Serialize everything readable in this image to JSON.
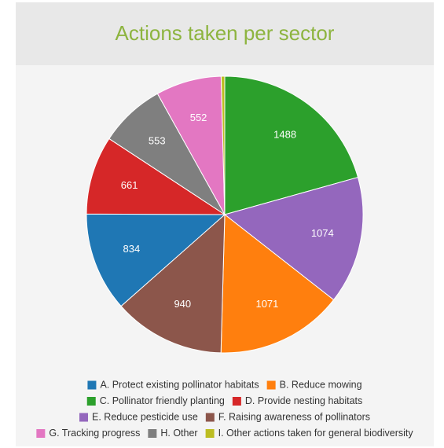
{
  "chart_data": {
    "type": "pie",
    "title": "Actions taken per sector",
    "categories": [
      "C. Pollinator friendly planting",
      "E. Reduce pesticide use",
      "B. Reduce mowing",
      "F. Raising awareness of pollinators",
      "A. Protect existing pollinator habitats",
      "D. Provide nesting habitats",
      "H. Other",
      "G. Tracking progress",
      "I. Other actions taken for general biodiversity"
    ],
    "values": [
      1488,
      1074,
      1071,
      940,
      834,
      661,
      553,
      552,
      30
    ],
    "colors": [
      "#2ca02c",
      "#9467bd",
      "#ff7f0e",
      "#8c564b",
      "#1f77b4",
      "#d62728",
      "#7f7f7f",
      "#e377c2",
      "#bcbd22"
    ],
    "legend": "bottom"
  }
}
